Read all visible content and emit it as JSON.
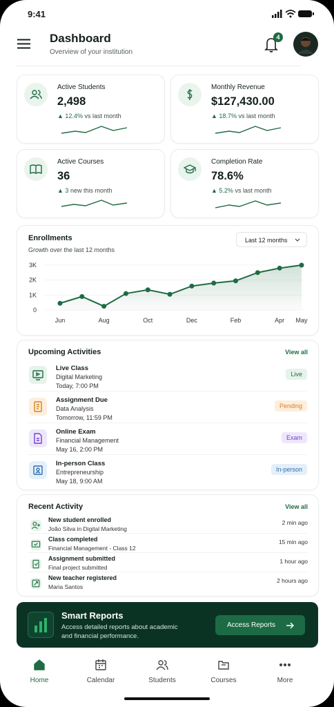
{
  "status": {
    "time": "9:41"
  },
  "header": {
    "title": "Dashboard",
    "subtitle": "Overview of your institution",
    "notifications": "4"
  },
  "stats": [
    {
      "label": "Active Students",
      "value": "2,498",
      "change": "12.4%",
      "note": "vs last month"
    },
    {
      "label": "Monthly Revenue",
      "value": "$127,430.00",
      "change": "18.7%",
      "note": "vs last month"
    },
    {
      "label": "Active Courses",
      "value": "36",
      "change": "3",
      "note": "new this month"
    },
    {
      "label": "Completion Rate",
      "value": "78.6%",
      "change": "5.2%",
      "note": "vs last month"
    }
  ],
  "chart_data": {
    "type": "line",
    "title": "Enrollments",
    "subtitle": "Growth over the last 12 months",
    "range_selector": "Last 12 months",
    "categories": [
      "Jun",
      null,
      "Aug",
      null,
      "Oct",
      null,
      "Dec",
      null,
      "Feb",
      null,
      "Apr",
      "May"
    ],
    "values": [
      450,
      900,
      250,
      1100,
      1350,
      1050,
      1600,
      1800,
      1950,
      2500,
      2800,
      3000
    ],
    "color": "#1f6b43",
    "ylim": [
      0,
      3000
    ],
    "yticks": [
      0,
      {
        "value": 1000,
        "label": "1K"
      },
      {
        "value": 2000,
        "label": "2K"
      },
      {
        "value": 3000,
        "label": "3K"
      }
    ]
  },
  "activities": {
    "title": "Upcoming Activities",
    "view_all": "View all",
    "items": [
      {
        "title": "Live Class",
        "subtitle": "Digital Marketing",
        "time": "Today, 7:00 PM",
        "badge": "Live"
      },
      {
        "title": "Assignment Due",
        "subtitle": "Data Analysis",
        "time": "Tomorrow, 11:59 PM",
        "badge": "Pending"
      },
      {
        "title": "Online Exam",
        "subtitle": "Financial Management",
        "time": "May 16, 2:00 PM",
        "badge": "Exam"
      },
      {
        "title": "In-person Class",
        "subtitle": "Entrepreneurship",
        "time": "May 18, 9:00 AM",
        "badge": "In-person"
      }
    ]
  },
  "recent": {
    "title": "Recent Activity",
    "view_all": "View all",
    "items": [
      {
        "title": "New student enrolled",
        "subtitle": "João Silva in Digital Marketing",
        "time": "2 min ago"
      },
      {
        "title": "Class completed",
        "subtitle": "Financial Management - Class 12",
        "time": "15 min ago"
      },
      {
        "title": "Assignment submitted",
        "subtitle": "Final project submitted",
        "time": "1 hour ago"
      },
      {
        "title": "New teacher registered",
        "subtitle": "Maria Santos",
        "time": "2 hours ago"
      }
    ]
  },
  "banner": {
    "title": "Smart Reports",
    "text": "Access detailed reports about academic and financial performance.",
    "button": "Access Reports"
  },
  "nav": [
    "Home",
    "Calendar",
    "Students",
    "Courses",
    "More"
  ]
}
